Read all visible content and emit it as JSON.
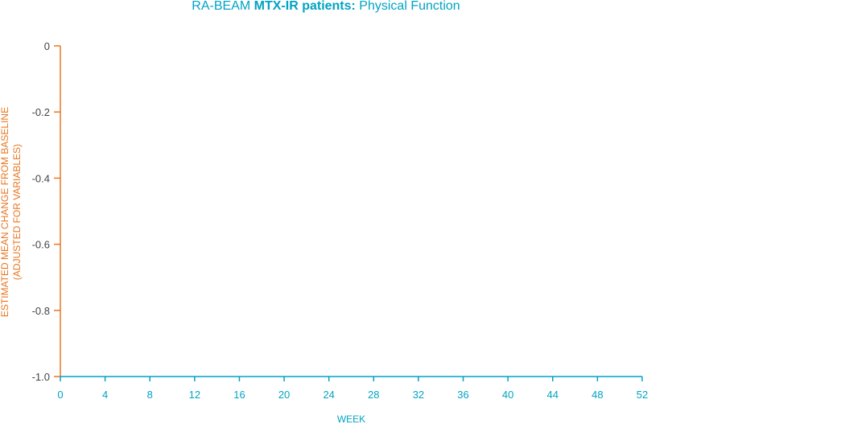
{
  "chart_data": {
    "type": "line",
    "title_parts": {
      "prefix": "RA-BEAM ",
      "emphasis": "MTX-IR patients:",
      "suffix": " Physical Function"
    },
    "ylabel_line1": "ESTIMATED MEAN CHANGE FROM BASELINE",
    "ylabel_line2": "(ADJUSTED FOR VARIABLES)",
    "xlabel": "WEEK",
    "y_ticks": [
      "0",
      "-0.2",
      "-0.4",
      "-0.6",
      "-0.8",
      "-1.0"
    ],
    "x_ticks": [
      "0",
      "4",
      "8",
      "12",
      "16",
      "20",
      "24",
      "28",
      "32",
      "36",
      "40",
      "44",
      "48",
      "52"
    ],
    "ylim": [
      -1.0,
      0
    ],
    "xlim": [
      0,
      52
    ],
    "series": [],
    "colors": {
      "y_axis": "#e87722",
      "x_axis": "#00a3c4",
      "title": "#00a3c4"
    }
  }
}
